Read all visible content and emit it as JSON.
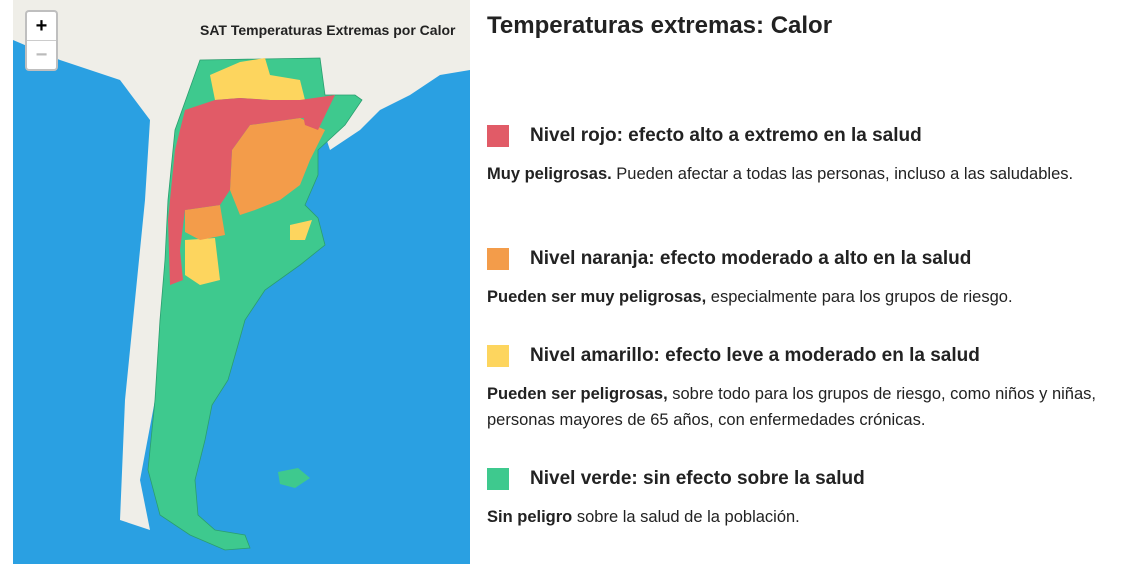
{
  "map": {
    "title": "SAT Temperaturas Extremas por Calor",
    "zoom_in": "+",
    "zoom_out": "−"
  },
  "legend": {
    "title": "Temperaturas extremas: Calor",
    "levels": [
      {
        "color": "#e15b67",
        "label": "Nivel rojo: efecto alto a extremo en la salud",
        "emphasis": "Muy peligrosas.",
        "text": "Pueden afectar a todas las personas, incluso a las saludables."
      },
      {
        "color": "#f39c4a",
        "label": "Nivel naranja: efecto moderado a alto en la salud",
        "emphasis": "Pueden ser muy peligrosas,",
        "text": "especialmente para los grupos de riesgo."
      },
      {
        "color": "#fdd55e",
        "label": "Nivel amarillo: efecto leve a moderado en la salud",
        "emphasis": "Pueden ser peligrosas,",
        "text": "sobre todo para los grupos de riesgo, como niños y niñas, personas mayores de 65 años, con enfermedades crónicas."
      },
      {
        "color": "#3ec98e",
        "label": "Nivel verde: sin efecto sobre la salud",
        "emphasis": "Sin peligro",
        "text": "sobre la salud de la población."
      }
    ]
  }
}
